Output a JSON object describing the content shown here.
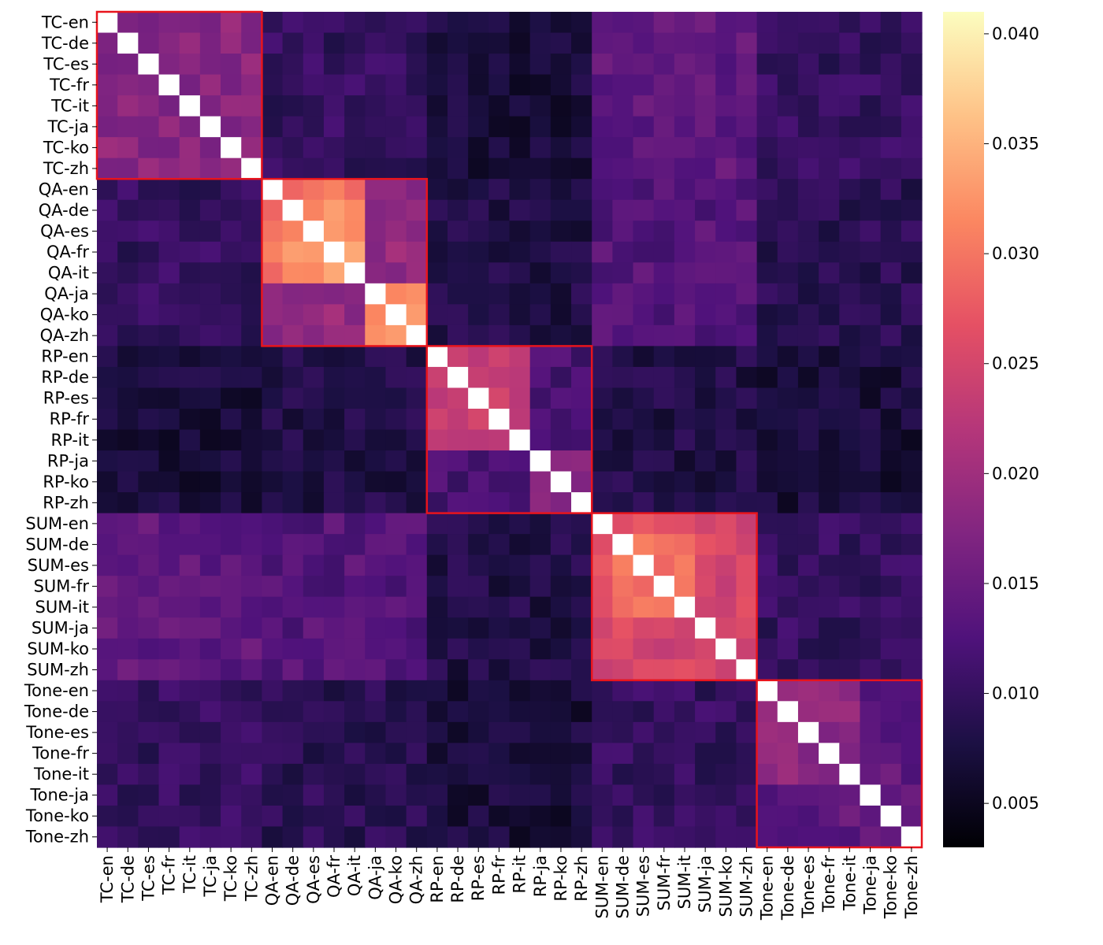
{
  "chart_data": {
    "type": "heatmap",
    "title": "",
    "xlabel": "",
    "ylabel": "",
    "labels": [
      "TC-en",
      "TC-de",
      "TC-es",
      "TC-fr",
      "TC-it",
      "TC-ja",
      "TC-ko",
      "TC-zh",
      "QA-en",
      "QA-de",
      "QA-es",
      "QA-fr",
      "QA-it",
      "QA-ja",
      "QA-ko",
      "QA-zh",
      "RP-en",
      "RP-de",
      "RP-es",
      "RP-fr",
      "RP-it",
      "RP-ja",
      "RP-ko",
      "RP-zh",
      "SUM-en",
      "SUM-de",
      "SUM-es",
      "SUM-fr",
      "SUM-it",
      "SUM-ja",
      "SUM-ko",
      "SUM-zh",
      "Tone-en",
      "Tone-de",
      "Tone-es",
      "Tone-fr",
      "Tone-it",
      "Tone-ja",
      "Tone-ko",
      "Tone-zh"
    ],
    "groups": [
      {
        "name": "TC",
        "start": 0,
        "end": 7
      },
      {
        "name": "QA",
        "start": 8,
        "end": 15
      },
      {
        "name": "RP",
        "start": 16,
        "end": 23
      },
      {
        "name": "SUM",
        "start": 24,
        "end": 31
      },
      {
        "name": "Tone",
        "start": 32,
        "end": 39
      }
    ],
    "group_box_color": "#e8141c",
    "diagonal_color": "#ffffff",
    "colormap": "magma",
    "vmin": 0.003,
    "vmax": 0.041,
    "colorbar_ticks": [
      "0.005",
      "0.010",
      "0.015",
      "0.020",
      "0.025",
      "0.030",
      "0.035",
      "0.040"
    ],
    "block_means": [
      [
        0.018,
        0.01,
        0.007,
        0.014,
        0.01
      ],
      [
        0.01,
        0.031,
        0.008,
        0.013,
        0.009
      ],
      [
        0.007,
        0.008,
        0.022,
        0.008,
        0.007
      ],
      [
        0.014,
        0.013,
        0.008,
        0.028,
        0.01
      ],
      [
        0.01,
        0.009,
        0.007,
        0.01,
        0.016
      ]
    ],
    "subgroup_overrides": {
      "qa_ja_ko_zh_block": 0.033,
      "qa_en_de_es_fr_it_block": 0.033,
      "rp_ja_ko_zh_block": 0.018,
      "rp_en_de_es_fr_it_block": 0.024,
      "sum_en_de_es_fr_it_block": 0.03,
      "tone_en_de_es_fr_it_block": 0.018
    }
  }
}
